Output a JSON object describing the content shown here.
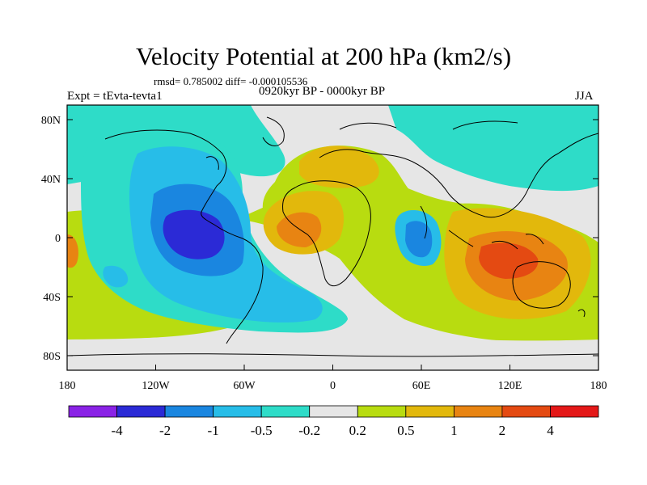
{
  "title": "Velocity Potential at 200 hPa (km2/s)",
  "stats": "rmsd= 0.785002  diff= -0.000105536",
  "left_label": "Expt = tEvta-tevta1",
  "center_label": "0920kyr BP - 0000kyr BP",
  "right_label": "JJA",
  "lat_ticks": [
    "80N",
    "40N",
    "0",
    "40S",
    "80S"
  ],
  "lon_ticks": [
    "180",
    "120W",
    "60W",
    "0",
    "60E",
    "120E",
    "180"
  ],
  "colorbar": {
    "labels": [
      "-4",
      "-2",
      "-1",
      "-0.5",
      "-0.2",
      "0.2",
      "0.5",
      "1",
      "2",
      "4"
    ],
    "colors": [
      "#8a22e6",
      "#2b2ad6",
      "#1a86e0",
      "#27bde8",
      "#2edcc8",
      "#e6e6e6",
      "#b8dc10",
      "#e2b80c",
      "#e88412",
      "#e44a12",
      "#e41818"
    ]
  }
}
